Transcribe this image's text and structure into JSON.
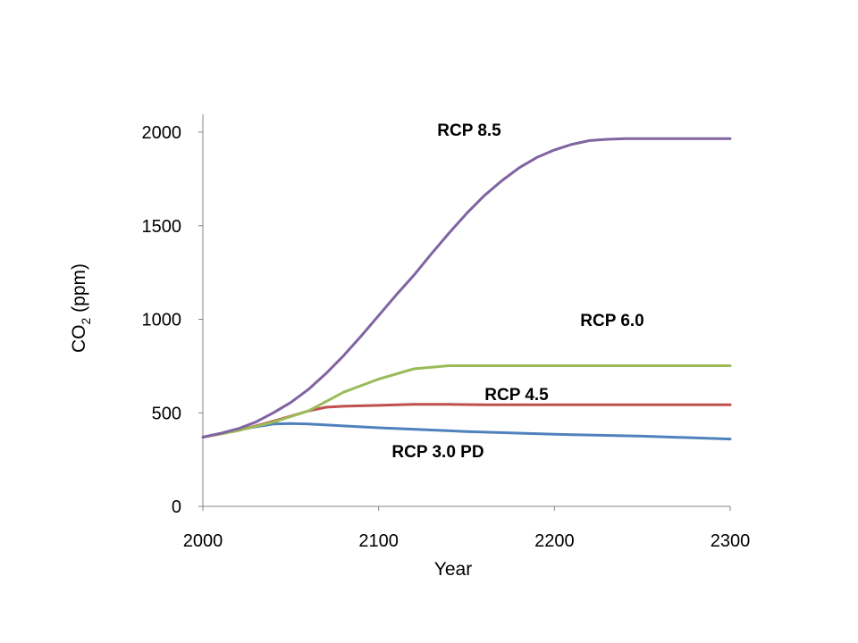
{
  "chart_data": {
    "type": "line",
    "xlabel": "Year",
    "ylabel_main": "CO",
    "ylabel_sub": "2",
    "ylabel_rest": " (ppm)",
    "xlim": [
      2000,
      2300
    ],
    "ylim": [
      0,
      2000
    ],
    "x_ticks": [
      2000,
      2100,
      2200,
      2300
    ],
    "y_ticks": [
      0,
      500,
      1000,
      1500,
      2000
    ],
    "grid": false,
    "legend": "inline labels",
    "series": [
      {
        "name": "RCP 8.5",
        "color": "#8064A2",
        "x": [
          2000,
          2010,
          2020,
          2030,
          2040,
          2050,
          2060,
          2070,
          2080,
          2090,
          2100,
          2110,
          2120,
          2130,
          2140,
          2150,
          2160,
          2170,
          2180,
          2190,
          2200,
          2210,
          2220,
          2230,
          2240,
          2250,
          2300
        ],
        "y": [
          370,
          390,
          415,
          450,
          500,
          555,
          625,
          710,
          805,
          910,
          1020,
          1130,
          1235,
          1350,
          1460,
          1565,
          1660,
          1740,
          1810,
          1865,
          1905,
          1935,
          1955,
          1962,
          1965,
          1965,
          1965
        ]
      },
      {
        "name": "RCP 6.0",
        "color": "#9BBB59",
        "x": [
          2000,
          2020,
          2040,
          2060,
          2080,
          2100,
          2120,
          2140,
          2160,
          2200,
          2250,
          2300
        ],
        "y": [
          370,
          405,
          450,
          510,
          610,
          680,
          735,
          752,
          752,
          752,
          752,
          752
        ]
      },
      {
        "name": "RCP 4.5",
        "color": "#C0504D",
        "x": [
          2000,
          2020,
          2040,
          2060,
          2070,
          2080,
          2100,
          2120,
          2140,
          2160,
          2200,
          2250,
          2300
        ],
        "y": [
          370,
          405,
          455,
          510,
          530,
          535,
          540,
          545,
          545,
          543,
          543,
          543,
          543
        ]
      },
      {
        "name": "RCP 3.0 PD",
        "color": "#4F81BD",
        "x": [
          2000,
          2020,
          2040,
          2050,
          2060,
          2080,
          2100,
          2150,
          2200,
          2250,
          2300
        ],
        "y": [
          370,
          410,
          440,
          443,
          440,
          430,
          420,
          400,
          385,
          375,
          360
        ]
      }
    ]
  }
}
